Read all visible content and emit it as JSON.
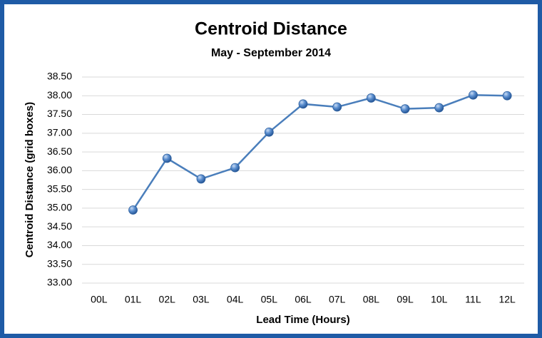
{
  "chart_data": {
    "type": "line",
    "title": "Centroid Distance",
    "subtitle": "May - September 2014",
    "x_label": "Lead Time (Hours)",
    "y_label": "Centroid Distance (grid boxes)",
    "categories": [
      "00L",
      "01L",
      "02L",
      "03L",
      "04L",
      "05L",
      "06L",
      "07L",
      "08L",
      "09L",
      "10L",
      "11L",
      "12L"
    ],
    "series": [
      {
        "color": "#4a7ebb",
        "values": [
          null,
          34.95,
          36.33,
          35.78,
          36.08,
          37.03,
          37.78,
          37.7,
          37.94,
          37.65,
          37.68,
          38.02,
          38.0
        ]
      }
    ],
    "ylim": [
      33,
      38.5
    ],
    "yticks": [
      {
        "value": 33,
        "label": "33.00"
      },
      {
        "value": 33.5,
        "label": "33.50"
      },
      {
        "value": 34,
        "label": "34.00"
      },
      {
        "value": 34.5,
        "label": "34.50"
      },
      {
        "value": 35,
        "label": "35.00"
      },
      {
        "value": 35.5,
        "label": "35.50"
      },
      {
        "value": 36,
        "label": "36.00"
      },
      {
        "value": 36.5,
        "label": "36.50"
      },
      {
        "value": 37,
        "label": "37.00"
      },
      {
        "value": 37.5,
        "label": "37.50"
      },
      {
        "value": 38,
        "label": "38.00"
      },
      {
        "value": 38.5,
        "label": "38.50"
      }
    ],
    "grid": true
  }
}
